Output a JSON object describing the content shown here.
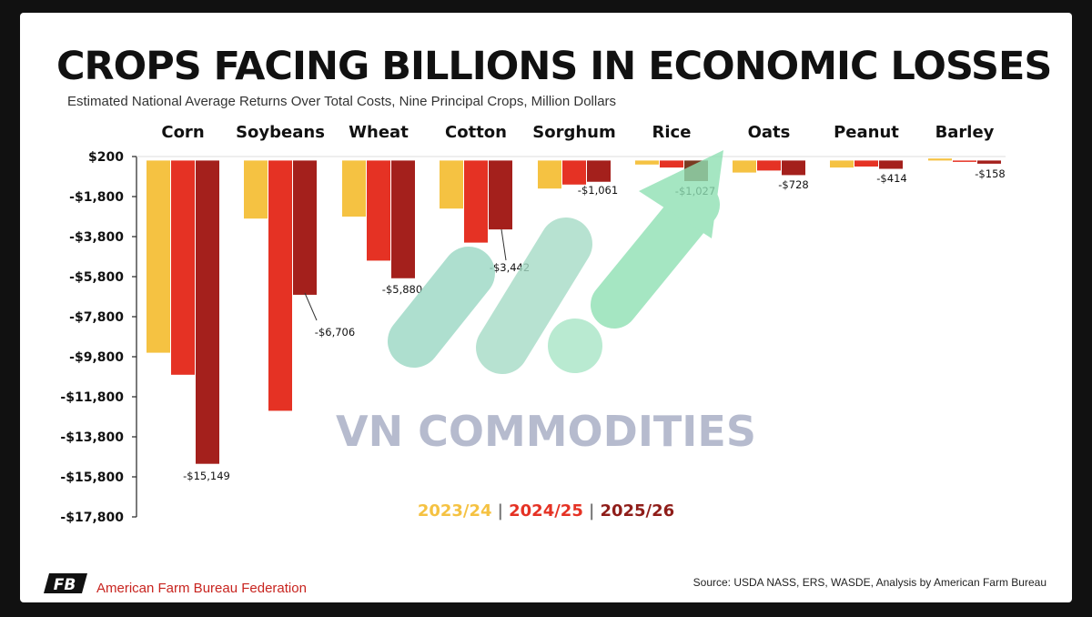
{
  "title": "CROPS FACING BILLIONS IN ECONOMIC LOSSES",
  "subtitle": "Estimated National Average Returns Over Total Costs, Nine Principal Crops, Million Dollars",
  "legend": [
    "2023/24",
    "2024/25",
    "2025/26"
  ],
  "legend_separator": "|",
  "watermark": "VN COMMODITIES",
  "organization": "American Farm Bureau Federation",
  "logo_text": "FB",
  "source": "Source: USDA NASS, ERS, WASDE, Analysis by American Farm Bureau",
  "colors": {
    "s2023": "#f5c242",
    "s2024": "#e53224",
    "s2025": "#a4201c",
    "rice2025": "#7a3a22",
    "arrow": "#8fe0b4",
    "stripes": "#9ad8c4"
  },
  "chart_data": {
    "type": "bar",
    "categories": [
      "Corn",
      "Soybeans",
      "Wheat",
      "Cotton",
      "Sorghum",
      "Rice",
      "Oats",
      "Peanut",
      "Barley"
    ],
    "series": [
      {
        "name": "2023/24",
        "values": [
          -9600,
          -2900,
          -2800,
          -2400,
          -1400,
          -200,
          -600,
          -350,
          100
        ]
      },
      {
        "name": "2024/25",
        "values": [
          -10700,
          -12500,
          -5000,
          -4100,
          -1200,
          -350,
          -500,
          -300,
          -50
        ]
      },
      {
        "name": "2025/26",
        "values": [
          -15149,
          -6706,
          -5880,
          -3442,
          -1061,
          -1027,
          -728,
          -414,
          -158
        ]
      }
    ],
    "labels": [
      "-$15,149",
      "-$6,706",
      "-$5,880",
      "-$3,442",
      "-$1,061",
      "-$1,027",
      "-$728",
      "-$414",
      "-$158"
    ],
    "yticks": [
      200,
      -1800,
      -3800,
      -5800,
      -7800,
      -9800,
      -11800,
      -13800,
      -15800,
      -17800
    ],
    "ytick_labels": [
      "$200",
      "-$1,800",
      "-$3,800",
      "-$5,800",
      "-$7,800",
      "-$9,800",
      "-$11,800",
      "-$13,800",
      "-$15,800",
      "-$17,800"
    ],
    "ylim": [
      -17800,
      200
    ],
    "grid": false,
    "legend_position": "bottom-center"
  }
}
